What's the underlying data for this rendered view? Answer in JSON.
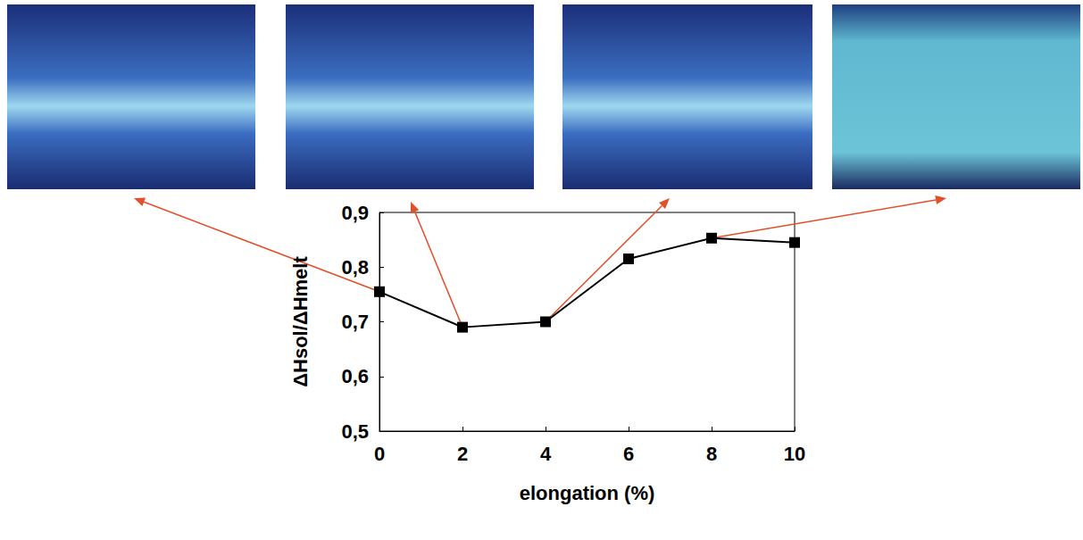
{
  "chart_data": {
    "type": "line",
    "x_label": "elongation (%)",
    "y_label": "ΔHsol/ΔHmelt",
    "x": [
      0,
      2,
      4,
      6,
      8,
      10
    ],
    "values": [
      0.755,
      0.69,
      0.7,
      0.815,
      0.853,
      0.845
    ],
    "color": "#000000",
    "marker": "square",
    "line_style": "solid",
    "xlim": [
      0,
      10
    ],
    "xticks": [
      0,
      2,
      4,
      6,
      8,
      10
    ],
    "ylim": [
      0.5,
      0.9
    ],
    "yticks": [
      {
        "value": 0.5,
        "label": "0,5"
      },
      {
        "value": 0.6,
        "label": "0,6"
      },
      {
        "value": 0.7,
        "label": "0,7"
      },
      {
        "value": 0.8,
        "label": "0,8"
      },
      {
        "value": 0.9,
        "label": "0,9"
      }
    ],
    "grid": false
  }
}
